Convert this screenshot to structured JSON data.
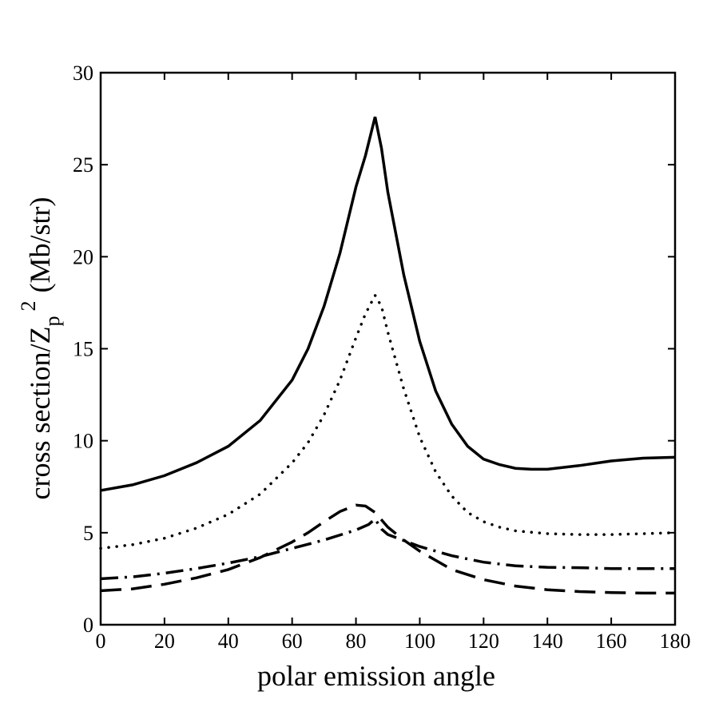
{
  "chart_data": {
    "type": "line",
    "title": "",
    "xlabel": "polar emission angle",
    "ylabel_main": "cross section/Z",
    "ylabel_sub": "p",
    "ylabel_sup": "2",
    "ylabel_unit": "(Mb/str)",
    "xlim": [
      0,
      180
    ],
    "ylim": [
      0,
      30
    ],
    "xticks": [
      0,
      20,
      40,
      60,
      80,
      100,
      120,
      140,
      160,
      180
    ],
    "yticks": [
      0,
      5,
      10,
      15,
      20,
      25,
      30
    ],
    "grid": false,
    "series": [
      {
        "name": "solid",
        "style": "solid",
        "x": [
          0,
          10,
          20,
          30,
          40,
          50,
          60,
          65,
          70,
          75,
          80,
          83,
          86,
          88,
          90,
          95,
          100,
          105,
          110,
          115,
          120,
          125,
          130,
          135,
          140,
          150,
          160,
          170,
          180
        ],
        "y": [
          7.3,
          7.6,
          8.1,
          8.8,
          9.7,
          11.1,
          13.3,
          15.0,
          17.3,
          20.2,
          23.8,
          25.5,
          27.6,
          25.9,
          23.5,
          19.0,
          15.4,
          12.7,
          10.9,
          9.7,
          9.0,
          8.7,
          8.5,
          8.45,
          8.45,
          8.65,
          8.9,
          9.05,
          9.1
        ]
      },
      {
        "name": "dotted",
        "style": "dotted",
        "x": [
          0,
          10,
          20,
          30,
          40,
          50,
          60,
          65,
          70,
          75,
          80,
          83,
          86,
          88,
          90,
          95,
          100,
          105,
          110,
          115,
          120,
          125,
          130,
          140,
          150,
          160,
          170,
          180
        ],
        "y": [
          4.15,
          4.35,
          4.7,
          5.25,
          6.0,
          7.1,
          8.8,
          9.9,
          11.4,
          13.3,
          15.6,
          16.9,
          17.9,
          17.3,
          15.9,
          12.8,
          10.2,
          8.3,
          7.0,
          6.1,
          5.6,
          5.3,
          5.1,
          4.95,
          4.9,
          4.9,
          4.95,
          5.0
        ]
      },
      {
        "name": "dash-dot",
        "style": "dashdot",
        "x": [
          0,
          10,
          20,
          30,
          40,
          50,
          60,
          70,
          80,
          84,
          86,
          88,
          90,
          100,
          110,
          120,
          130,
          140,
          150,
          160,
          170,
          180
        ],
        "y": [
          2.5,
          2.6,
          2.8,
          3.05,
          3.35,
          3.7,
          4.15,
          4.6,
          5.15,
          5.45,
          5.75,
          5.2,
          4.9,
          4.25,
          3.75,
          3.4,
          3.2,
          3.12,
          3.1,
          3.05,
          3.05,
          3.05
        ]
      },
      {
        "name": "dashed",
        "style": "dashed",
        "x": [
          0,
          10,
          20,
          30,
          40,
          50,
          60,
          65,
          70,
          75,
          80,
          83,
          86,
          90,
          95,
          100,
          105,
          110,
          120,
          130,
          140,
          150,
          160,
          170,
          180
        ],
        "y": [
          1.85,
          1.95,
          2.2,
          2.55,
          3.0,
          3.65,
          4.5,
          5.0,
          5.6,
          6.15,
          6.5,
          6.45,
          6.1,
          5.3,
          4.6,
          4.0,
          3.5,
          3.0,
          2.45,
          2.1,
          1.9,
          1.8,
          1.75,
          1.72,
          1.72
        ]
      }
    ]
  }
}
